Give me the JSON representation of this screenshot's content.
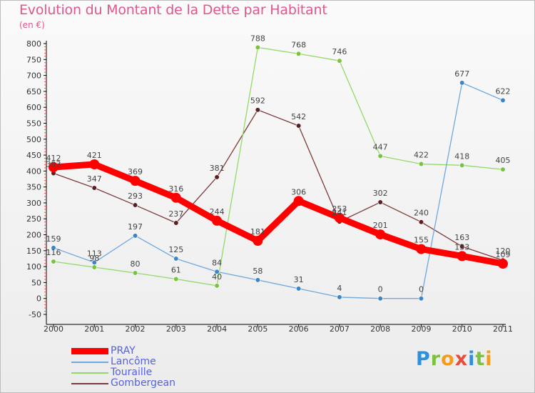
{
  "header": {
    "title": "Evolution du Montant de la Dette par Habitant",
    "subtitle": "(en €)"
  },
  "brand": {
    "letters": [
      {
        "ch": "P",
        "color": "#2f8fd8"
      },
      {
        "ch": "r",
        "color": "#7cc242"
      },
      {
        "ch": "o",
        "color": "#f39c1f"
      },
      {
        "ch": "x",
        "color": "#e94b3c"
      },
      {
        "ch": "i",
        "color": "#2f8fd8"
      },
      {
        "ch": "t",
        "color": "#7cc242"
      },
      {
        "ch": "i",
        "color": "#f39c1f"
      }
    ]
  },
  "chart_data": {
    "type": "line",
    "title": "Evolution du Montant de la Dette par Habitant",
    "subtitle": "(en €)",
    "x": [
      "2000",
      "2001",
      "2002",
      "2003",
      "2004",
      "2005",
      "2006",
      "2007",
      "2008",
      "2009",
      "2010",
      "2011"
    ],
    "ylim": [
      -50,
      800
    ],
    "yticks": [
      -50,
      0,
      50,
      100,
      150,
      200,
      250,
      300,
      350,
      400,
      450,
      500,
      550,
      600,
      650,
      700,
      750,
      800
    ],
    "grid": false,
    "legend_position": "bottom-left",
    "series": [
      {
        "name": "PRAY",
        "color": "#ff0000",
        "marker": "#ff0000",
        "thick": true,
        "values": [
          412,
          421,
          369,
          316,
          244,
          181,
          306,
          253,
          201,
          155,
          133,
          109
        ],
        "labels": [
          "412",
          "421",
          "369",
          "316",
          "244",
          "181",
          "306",
          "253",
          "201",
          "155",
          "133",
          "109"
        ]
      },
      {
        "name": "Lancôme",
        "color": "#6fa8dc",
        "marker": "#3d85c6",
        "values": [
          159,
          113,
          197,
          125,
          84,
          58,
          31,
          4,
          0,
          0,
          677,
          622
        ],
        "labels": [
          "159",
          "113",
          "197",
          "125",
          "84",
          "58",
          "31",
          "4",
          "0",
          "0",
          "677",
          "622"
        ]
      },
      {
        "name": "Touraille",
        "color": "#93d96a",
        "marker": "#7cc242",
        "values": [
          116,
          98,
          80,
          61,
          40,
          788,
          768,
          746,
          447,
          422,
          418,
          405
        ],
        "labels": [
          "116",
          "98",
          "80",
          "61",
          "40",
          "788",
          "768",
          "746",
          "447",
          "422",
          "418",
          "405"
        ]
      },
      {
        "name": "Gombergean",
        "color": "#7b3b3b",
        "marker": "#5a1f1f",
        "values": [
          393,
          347,
          293,
          237,
          381,
          592,
          542,
          241,
          302,
          240,
          163,
          120
        ],
        "labels": [
          "393",
          "347",
          "293",
          "237",
          "381",
          "592",
          "542",
          "241",
          "302",
          "240",
          "163",
          "120"
        ]
      }
    ]
  }
}
